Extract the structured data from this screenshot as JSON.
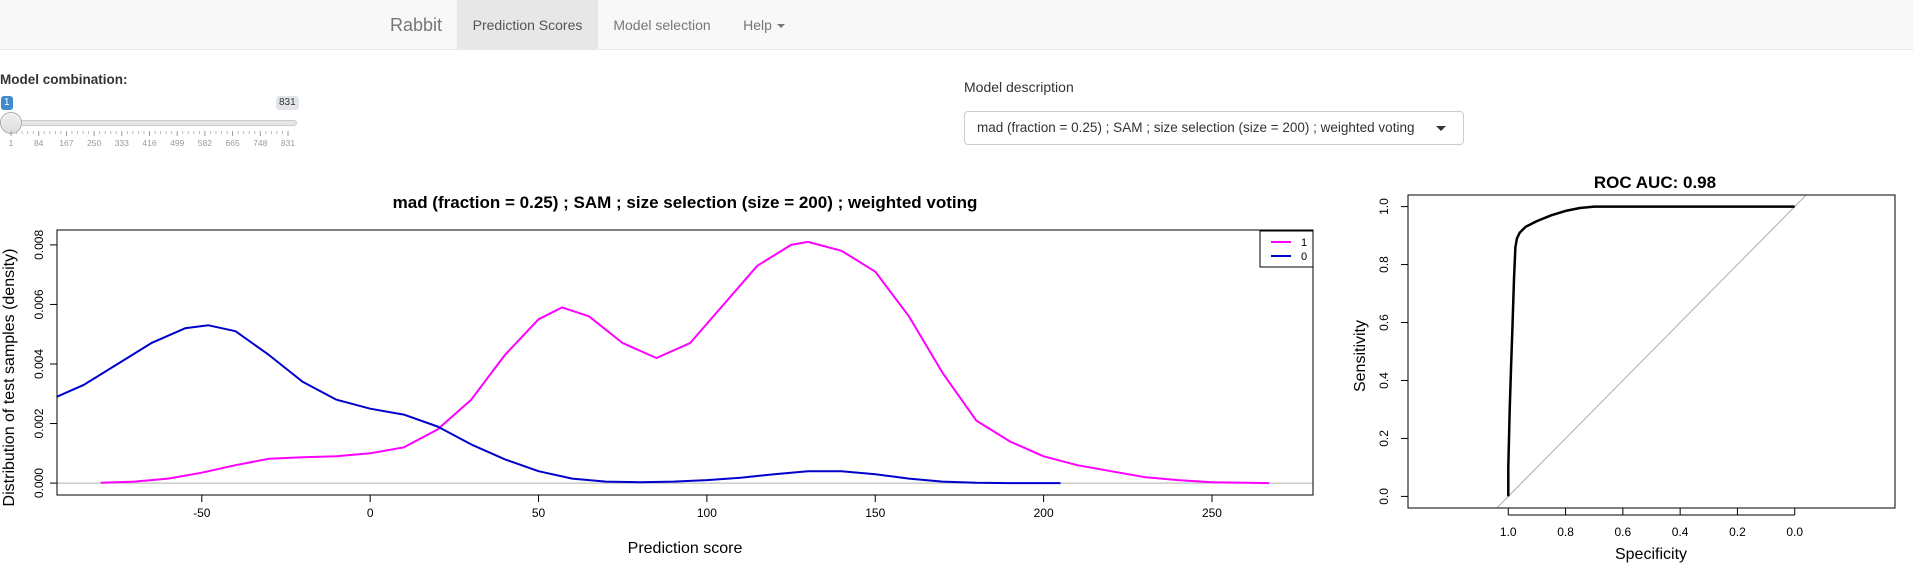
{
  "navbar": {
    "brand": "Rabbit",
    "tabs": [
      {
        "label": "Prediction Scores",
        "active": true
      },
      {
        "label": "Model selection",
        "active": false
      },
      {
        "label": "Help",
        "active": false,
        "dropdown": true
      }
    ]
  },
  "controls": {
    "model_combination_label": "Model combination:",
    "slider": {
      "min": 1,
      "max": 831,
      "value": 1,
      "tick_labels": [
        "1",
        "84",
        "167",
        "250",
        "333",
        "416",
        "499",
        "582",
        "665",
        "748",
        "831"
      ]
    },
    "model_description_label": "Model description",
    "model_description_value": "mad (fraction = 0.25) ; SAM ; size selection (size = 200) ; weighted voting"
  },
  "colors": {
    "series_1": "#ff00ff",
    "series_0": "#0000cc",
    "roc": "#000000",
    "diagonal": "#b0b0b0"
  },
  "chart_data": [
    {
      "type": "line",
      "title": "mad (fraction = 0.25) ;  SAM ;  size selection (size = 200) ;  weighted voting",
      "xlabel": "Prediction score",
      "ylabel": "Distribution of test samples (density)",
      "xlim": [
        -93,
        280
      ],
      "ylim": [
        -0.0004,
        0.0085
      ],
      "x_ticks": [
        -50,
        0,
        50,
        100,
        150,
        200,
        250
      ],
      "y_ticks": [
        0.0,
        0.002,
        0.004,
        0.006,
        0.008
      ],
      "y_tick_labels": [
        "0.000",
        "0.002",
        "0.004",
        "0.006",
        "0.008"
      ],
      "legend_position": "top-right",
      "series": [
        {
          "name": "1",
          "color": "#ff00ff",
          "x": [
            -80,
            -70,
            -60,
            -50,
            -40,
            -30,
            -20,
            -10,
            0,
            10,
            20,
            30,
            40,
            50,
            57,
            65,
            75,
            85,
            95,
            105,
            115,
            125,
            130,
            140,
            150,
            160,
            170,
            180,
            190,
            200,
            210,
            220,
            230,
            240,
            250,
            260,
            267
          ],
          "y": [
            1e-05,
            5e-05,
            0.00015,
            0.00035,
            0.0006,
            0.00082,
            0.00087,
            0.0009,
            0.001,
            0.0012,
            0.0018,
            0.0028,
            0.0043,
            0.0055,
            0.0059,
            0.0056,
            0.0047,
            0.0042,
            0.0047,
            0.006,
            0.0073,
            0.008,
            0.0081,
            0.0078,
            0.0071,
            0.0056,
            0.0037,
            0.0021,
            0.0014,
            0.0009,
            0.0006,
            0.0004,
            0.0002,
            0.0001,
            3e-05,
            1e-05,
            0.0
          ]
        },
        {
          "name": "0",
          "color": "#0000cc",
          "x": [
            -93,
            -85,
            -75,
            -65,
            -55,
            -48,
            -40,
            -30,
            -20,
            -10,
            0,
            10,
            20,
            30,
            40,
            50,
            60,
            70,
            80,
            90,
            100,
            110,
            120,
            130,
            140,
            150,
            160,
            170,
            180,
            190,
            200,
            205
          ],
          "y": [
            0.0029,
            0.0033,
            0.004,
            0.0047,
            0.0052,
            0.0053,
            0.0051,
            0.0043,
            0.0034,
            0.0028,
            0.0025,
            0.0023,
            0.0019,
            0.0013,
            0.0008,
            0.0004,
            0.00015,
            5e-05,
            3e-05,
            5e-05,
            0.0001,
            0.00018,
            0.0003,
            0.0004,
            0.0004,
            0.0003,
            0.00015,
            5e-05,
            1e-05,
            0.0,
            0.0,
            0.0
          ]
        }
      ]
    },
    {
      "type": "line",
      "title": "ROC AUC: 0.98",
      "xlabel": "Specificity",
      "ylabel": "Sensitivity",
      "xlim": [
        1.35,
        -0.35
      ],
      "ylim": [
        -0.04,
        1.04
      ],
      "x_ticks": [
        1.0,
        0.8,
        0.6,
        0.4,
        0.2,
        0.0
      ],
      "x_tick_labels": [
        "1.0",
        "0.8",
        "0.6",
        "0.4",
        "0.2",
        "0.0"
      ],
      "y_ticks": [
        0.0,
        0.2,
        0.4,
        0.6,
        0.8,
        1.0
      ],
      "y_tick_labels": [
        "0.0",
        "0.2",
        "0.4",
        "0.6",
        "0.8",
        "1.0"
      ],
      "series": [
        {
          "color": "#000000",
          "x": [
            1.0,
            1.0,
            0.995,
            0.99,
            0.985,
            0.98,
            0.975,
            0.97,
            0.96,
            0.94,
            0.9,
            0.85,
            0.8,
            0.75,
            0.7,
            0.0
          ],
          "y": [
            0.0,
            0.1,
            0.3,
            0.45,
            0.6,
            0.75,
            0.86,
            0.89,
            0.91,
            0.93,
            0.95,
            0.97,
            0.985,
            0.995,
            1.0,
            1.0
          ]
        }
      ],
      "diagonal": {
        "x": [
          1.04,
          -0.04
        ],
        "y": [
          -0.04,
          1.04
        ]
      }
    }
  ]
}
